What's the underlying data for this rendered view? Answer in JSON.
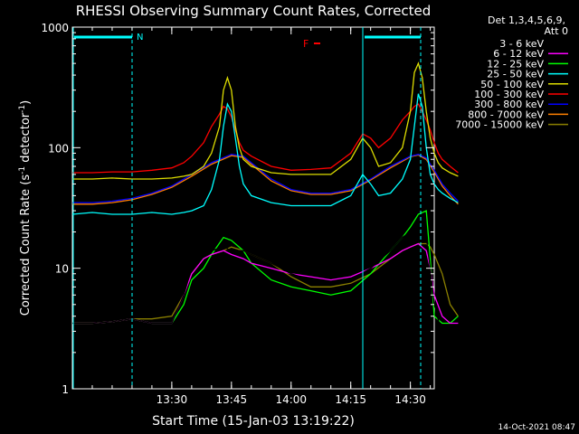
{
  "chart_data": {
    "type": "line",
    "title": "RHESSI Observing Summary Count Rates, Corrected",
    "xlabel": "Start Time (15-Jan-03 13:19:22)",
    "ylabel_main": "Corrected Count Rate (s",
    "ylabel_sup1": "-1",
    "ylabel_mid": " detector",
    "ylabel_sup2": "-1",
    "ylabel_end": ")",
    "yscale": "log",
    "ylim": [
      1,
      1000
    ],
    "xlim_minutes": [
      5,
      96
    ],
    "x_ticks": [
      {
        "label": "13:30",
        "minute": 30
      },
      {
        "label": "13:45",
        "minute": 45
      },
      {
        "label": "14:00",
        "minute": 60
      },
      {
        "label": "14:15",
        "minute": 75
      },
      {
        "label": "14:30",
        "minute": 90
      },
      {
        "label": "14:45",
        "minute": 105
      }
    ],
    "y_ticks": [
      {
        "label": "1",
        "value": 1
      },
      {
        "label": "10",
        "value": 10
      },
      {
        "label": "100",
        "value": 100
      },
      {
        "label": "1000",
        "value": 1000
      }
    ],
    "legend_header": [
      "Det 1,3,4,5,6,9,",
      "Att 0"
    ],
    "annotations": {
      "night_label": "N",
      "flag_label": "F"
    },
    "timestamp": "14-Oct-2021 08:47",
    "series": [
      {
        "name": "3 - 6 keV",
        "color": "#000000",
        "x": [
          5,
          10,
          15,
          20,
          25,
          30,
          33,
          35,
          38,
          40,
          43,
          45,
          48,
          50,
          55,
          60,
          65,
          70,
          75,
          80,
          85,
          88,
          90,
          92,
          94,
          95,
          96,
          98,
          100,
          102
        ],
        "values": [
          3.5,
          3.5,
          3.6,
          3.8,
          3.5,
          3.5,
          6,
          10,
          13,
          14,
          15,
          14,
          14,
          13,
          11,
          9,
          8,
          7.5,
          8,
          10,
          14,
          18,
          20,
          22,
          18,
          10,
          5,
          2.8,
          2,
          1.2
        ]
      },
      {
        "name": "6 - 12 keV",
        "color": "#ff00ff",
        "x": [
          5,
          10,
          15,
          20,
          25,
          30,
          33,
          35,
          38,
          40,
          43,
          45,
          48,
          50,
          55,
          60,
          65,
          70,
          75,
          80,
          85,
          88,
          90,
          92,
          94,
          95,
          96,
          98,
          100,
          102
        ],
        "values": [
          3.5,
          3.5,
          3.6,
          3.8,
          3.5,
          3.5,
          6,
          9,
          12,
          13,
          14,
          13,
          12,
          11,
          10,
          9,
          8.5,
          8,
          8.5,
          10,
          12,
          14,
          15,
          16,
          14,
          10,
          6,
          4,
          3.5,
          3.5
        ]
      },
      {
        "name": "12 - 25 keV",
        "color": "#00ff00",
        "x": [
          5,
          10,
          15,
          20,
          25,
          30,
          33,
          35,
          38,
          40,
          43,
          45,
          48,
          50,
          55,
          60,
          65,
          70,
          75,
          80,
          85,
          88,
          90,
          92,
          94,
          95,
          96,
          98,
          100,
          102
        ],
        "values": [
          3.5,
          3.5,
          3.6,
          3.8,
          3.5,
          3.5,
          5,
          8,
          10,
          13,
          18,
          17,
          14,
          11,
          8,
          7,
          6.5,
          6,
          6.5,
          9,
          14,
          18,
          22,
          28,
          30,
          12,
          4,
          3.5,
          3.5,
          4
        ]
      },
      {
        "name": "25 - 50 keV",
        "color": "#00ffff",
        "x": [
          5,
          10,
          15,
          20,
          25,
          30,
          33,
          35,
          38,
          40,
          42,
          43,
          44,
          45,
          46,
          47,
          48,
          50,
          55,
          60,
          65,
          70,
          75,
          78,
          80,
          82,
          85,
          88,
          90,
          91,
          92,
          93,
          94,
          95,
          96,
          97,
          98,
          100,
          102
        ],
        "values": [
          28,
          29,
          28,
          28,
          29,
          28,
          29,
          30,
          33,
          45,
          80,
          150,
          230,
          200,
          120,
          70,
          50,
          40,
          35,
          33,
          33,
          33,
          40,
          60,
          50,
          40,
          42,
          55,
          80,
          150,
          280,
          220,
          100,
          60,
          50,
          45,
          42,
          38,
          35
        ]
      },
      {
        "name": "50 - 100 keV",
        "color": "#dddd00",
        "x": [
          5,
          10,
          15,
          20,
          25,
          30,
          33,
          35,
          38,
          40,
          42,
          43,
          44,
          45,
          46,
          47,
          48,
          50,
          55,
          60,
          65,
          70,
          75,
          78,
          80,
          82,
          85,
          88,
          90,
          91,
          92,
          93,
          94,
          95,
          96,
          97,
          98,
          100,
          102
        ],
        "values": [
          55,
          55,
          56,
          55,
          55,
          56,
          58,
          60,
          70,
          90,
          150,
          300,
          380,
          300,
          150,
          100,
          80,
          70,
          62,
          60,
          60,
          60,
          80,
          120,
          100,
          70,
          75,
          100,
          200,
          420,
          500,
          380,
          200,
          120,
          90,
          75,
          68,
          62,
          58
        ]
      },
      {
        "name": "100 - 300 keV",
        "color": "#ff0000",
        "x": [
          5,
          10,
          15,
          20,
          25,
          30,
          33,
          35,
          38,
          40,
          42,
          43,
          44,
          45,
          46,
          47,
          48,
          50,
          55,
          60,
          65,
          70,
          75,
          78,
          80,
          82,
          85,
          88,
          90,
          91,
          92,
          93,
          94,
          95,
          96,
          97,
          98,
          100,
          102
        ],
        "values": [
          62,
          62,
          63,
          63,
          65,
          68,
          75,
          85,
          110,
          150,
          190,
          220,
          210,
          180,
          140,
          110,
          95,
          85,
          70,
          65,
          66,
          68,
          90,
          130,
          120,
          100,
          120,
          170,
          200,
          220,
          230,
          200,
          170,
          140,
          110,
          90,
          80,
          70,
          62
        ]
      },
      {
        "name": "300 - 800 keV",
        "color": "#0000ff",
        "x": [
          5,
          10,
          15,
          20,
          25,
          30,
          35,
          40,
          45,
          48,
          50,
          55,
          60,
          65,
          70,
          75,
          80,
          85,
          90,
          92,
          94,
          96,
          98,
          100,
          102
        ],
        "values": [
          35,
          35,
          36,
          38,
          42,
          48,
          60,
          75,
          88,
          85,
          75,
          55,
          45,
          42,
          42,
          45,
          55,
          70,
          85,
          88,
          82,
          65,
          50,
          42,
          36
        ]
      },
      {
        "name": "800 - 7000 keV",
        "color": "#ff8000",
        "x": [
          5,
          10,
          15,
          20,
          25,
          30,
          35,
          40,
          45,
          48,
          50,
          55,
          60,
          65,
          70,
          75,
          80,
          85,
          90,
          92,
          94,
          96,
          98,
          100,
          102
        ],
        "values": [
          34,
          34,
          35,
          37,
          41,
          47,
          58,
          73,
          86,
          83,
          73,
          53,
          44,
          41,
          41,
          44,
          54,
          68,
          84,
          87,
          80,
          63,
          48,
          40,
          34
        ]
      },
      {
        "name": "7000 - 15000 keV",
        "color": "#8b8000",
        "x": [
          5,
          10,
          15,
          20,
          25,
          30,
          33,
          35,
          38,
          40,
          43,
          45,
          48,
          50,
          55,
          60,
          65,
          70,
          75,
          80,
          85,
          88,
          90,
          92,
          94,
          95,
          96,
          98,
          100,
          102
        ],
        "values": [
          3.5,
          3.5,
          3.6,
          3.8,
          3.8,
          4,
          6,
          9,
          12,
          13,
          14,
          15,
          14,
          13,
          11,
          8.5,
          7,
          7,
          7.5,
          9,
          12,
          14,
          15,
          16,
          16,
          15,
          13,
          9,
          5,
          4
        ]
      }
    ]
  }
}
